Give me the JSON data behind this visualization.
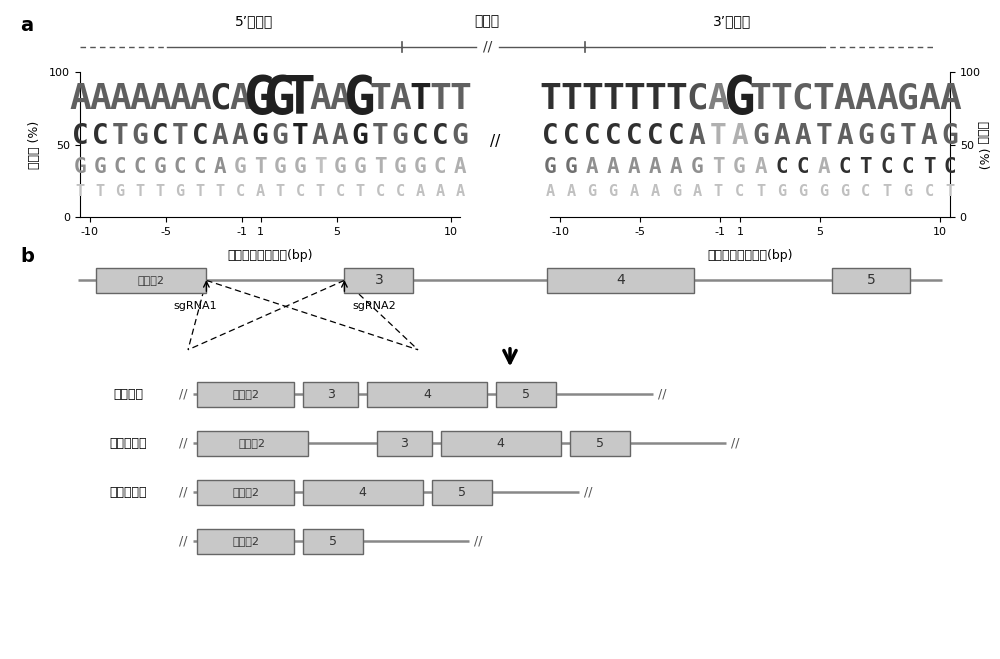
{
  "panel_a": {
    "title_5prime": "5’外显子",
    "title_intron": "内含子",
    "title_3prime": "3’外显子",
    "ylabel": "可能性 (%)",
    "xlabel": "自剪接位点的距离(bp)",
    "left_logo": {
      "rows": [
        [
          "A",
          "A",
          "A",
          "A",
          "A",
          "A",
          "A",
          "C",
          "A",
          "G",
          "G",
          "T",
          "A",
          "A",
          "G",
          "T",
          "A",
          "T",
          "T",
          "T"
        ],
        [
          "C",
          "C",
          "T",
          "G",
          "C",
          "T",
          "C",
          "A",
          "A",
          "G",
          "G",
          "T",
          "A",
          "A",
          "G",
          "T",
          "G",
          "C",
          "C",
          "G"
        ],
        [
          "G",
          "G",
          "C",
          "C",
          "G",
          "C",
          "C",
          "A",
          "G",
          "T",
          "G",
          "G",
          "T",
          "G",
          "G",
          "T",
          "G",
          "G",
          "C",
          "A"
        ],
        [
          "T",
          "T",
          "G",
          "T",
          "T",
          "G",
          "T",
          "T",
          "C",
          "A",
          "T",
          "C",
          "T",
          "C",
          "T",
          "C",
          "C",
          "A",
          "A",
          "A"
        ]
      ],
      "sizes": [
        [
          26,
          26,
          26,
          26,
          26,
          26,
          26,
          26,
          26,
          38,
          38,
          38,
          26,
          26,
          38,
          26,
          26,
          26,
          26,
          26
        ],
        [
          20,
          20,
          20,
          20,
          20,
          20,
          20,
          20,
          20,
          20,
          20,
          20,
          20,
          20,
          20,
          20,
          20,
          20,
          20,
          20
        ],
        [
          15,
          15,
          15,
          15,
          15,
          15,
          15,
          15,
          15,
          15,
          15,
          15,
          15,
          15,
          15,
          15,
          15,
          15,
          15,
          15
        ],
        [
          11,
          11,
          11,
          11,
          11,
          11,
          11,
          11,
          11,
          11,
          11,
          11,
          11,
          11,
          11,
          11,
          11,
          11,
          11,
          11
        ]
      ],
      "colors": [
        [
          "#606060",
          "#606060",
          "#606060",
          "#606060",
          "#606060",
          "#606060",
          "#606060",
          "#303030",
          "#606060",
          "#202020",
          "#202020",
          "#202020",
          "#606060",
          "#606060",
          "#202020",
          "#606060",
          "#606060",
          "#202020",
          "#606060",
          "#606060"
        ],
        [
          "#303030",
          "#303030",
          "#606060",
          "#606060",
          "#303030",
          "#606060",
          "#303030",
          "#606060",
          "#606060",
          "#202020",
          "#606060",
          "#202020",
          "#606060",
          "#606060",
          "#202020",
          "#606060",
          "#606060",
          "#303030",
          "#303030",
          "#606060"
        ],
        [
          "#909090",
          "#909090",
          "#909090",
          "#909090",
          "#909090",
          "#909090",
          "#909090",
          "#909090",
          "#b0b0b0",
          "#b0b0b0",
          "#b0b0b0",
          "#b0b0b0",
          "#c0c0c0",
          "#b0b0b0",
          "#b0b0b0",
          "#b0b0b0",
          "#b0b0b0",
          "#b0b0b0",
          "#b0b0b0",
          "#b0b0b0"
        ],
        [
          "#c0c0c0",
          "#c0c0c0",
          "#c0c0c0",
          "#c0c0c0",
          "#c0c0c0",
          "#c0c0c0",
          "#c0c0c0",
          "#c0c0c0",
          "#c0c0c0",
          "#c0c0c0",
          "#c0c0c0",
          "#c0c0c0",
          "#c0c0c0",
          "#c0c0c0",
          "#c0c0c0",
          "#c0c0c0",
          "#c0c0c0",
          "#c0c0c0",
          "#c0c0c0",
          "#c0c0c0"
        ]
      ]
    },
    "right_logo": {
      "rows": [
        [
          "T",
          "T",
          "T",
          "T",
          "T",
          "T",
          "T",
          "C",
          "A",
          "G",
          "T",
          "T",
          "C",
          "T",
          "A",
          "A",
          "A",
          "G",
          "A",
          "A"
        ],
        [
          "C",
          "C",
          "C",
          "C",
          "C",
          "C",
          "C",
          "A",
          "T",
          "A",
          "G",
          "A",
          "A",
          "T",
          "A",
          "G",
          "G",
          "T",
          "A",
          "G"
        ],
        [
          "G",
          "G",
          "A",
          "A",
          "A",
          "A",
          "A",
          "G",
          "T",
          "G",
          "A",
          "C",
          "C",
          "A",
          "C",
          "T",
          "C",
          "C",
          "T",
          "C"
        ],
        [
          "A",
          "A",
          "G",
          "G",
          "A",
          "A",
          "G",
          "A",
          "T",
          "C",
          "T",
          "G",
          "G",
          "G",
          "G",
          "C",
          "T",
          "G",
          "C",
          "T"
        ]
      ],
      "sizes": [
        [
          26,
          26,
          26,
          26,
          26,
          26,
          26,
          26,
          26,
          38,
          26,
          26,
          26,
          26,
          26,
          26,
          26,
          26,
          26,
          26
        ],
        [
          20,
          20,
          20,
          20,
          20,
          20,
          20,
          20,
          20,
          20,
          20,
          20,
          20,
          20,
          20,
          20,
          20,
          20,
          20,
          20
        ],
        [
          15,
          15,
          15,
          15,
          15,
          15,
          15,
          15,
          15,
          15,
          15,
          15,
          15,
          15,
          15,
          15,
          15,
          15,
          15,
          15
        ],
        [
          11,
          11,
          11,
          11,
          11,
          11,
          11,
          11,
          11,
          11,
          11,
          11,
          11,
          11,
          11,
          11,
          11,
          11,
          11,
          11
        ]
      ],
      "colors": [
        [
          "#303030",
          "#303030",
          "#303030",
          "#303030",
          "#303030",
          "#303030",
          "#303030",
          "#505050",
          "#808080",
          "#202020",
          "#606060",
          "#606060",
          "#606060",
          "#606060",
          "#606060",
          "#606060",
          "#606060",
          "#606060",
          "#606060",
          "#606060"
        ],
        [
          "#303030",
          "#303030",
          "#303030",
          "#303030",
          "#303030",
          "#303030",
          "#303030",
          "#606060",
          "#b0b0b0",
          "#b0b0b0",
          "#606060",
          "#606060",
          "#606060",
          "#606060",
          "#606060",
          "#606060",
          "#606060",
          "#606060",
          "#606060",
          "#606060"
        ],
        [
          "#707070",
          "#707070",
          "#909090",
          "#909090",
          "#909090",
          "#909090",
          "#909090",
          "#909090",
          "#b0b0b0",
          "#b0b0b0",
          "#b0b0b0",
          "#303030",
          "#303030",
          "#b0b0b0",
          "#303030",
          "#303030",
          "#303030",
          "#303030",
          "#303030",
          "#303030"
        ],
        [
          "#c0c0c0",
          "#c0c0c0",
          "#c0c0c0",
          "#c0c0c0",
          "#c0c0c0",
          "#c0c0c0",
          "#c0c0c0",
          "#c0c0c0",
          "#c0c0c0",
          "#c0c0c0",
          "#c0c0c0",
          "#c0c0c0",
          "#c0c0c0",
          "#c0c0c0",
          "#c0c0c0",
          "#c0c0c0",
          "#c0c0c0",
          "#c0c0c0",
          "#c0c0c0",
          "#c0c0c0"
        ]
      ]
    }
  },
  "panel_b": {
    "exon_color": "#c8c8c8",
    "line_color": "#888888",
    "normal_label": "正常剪切",
    "intron_ret_label": "内含子保留",
    "exon_skip_label": "外显子跳跃",
    "sgRNA1_label": "sgRNA1",
    "sgRNA2_label": "sgRNA2"
  }
}
